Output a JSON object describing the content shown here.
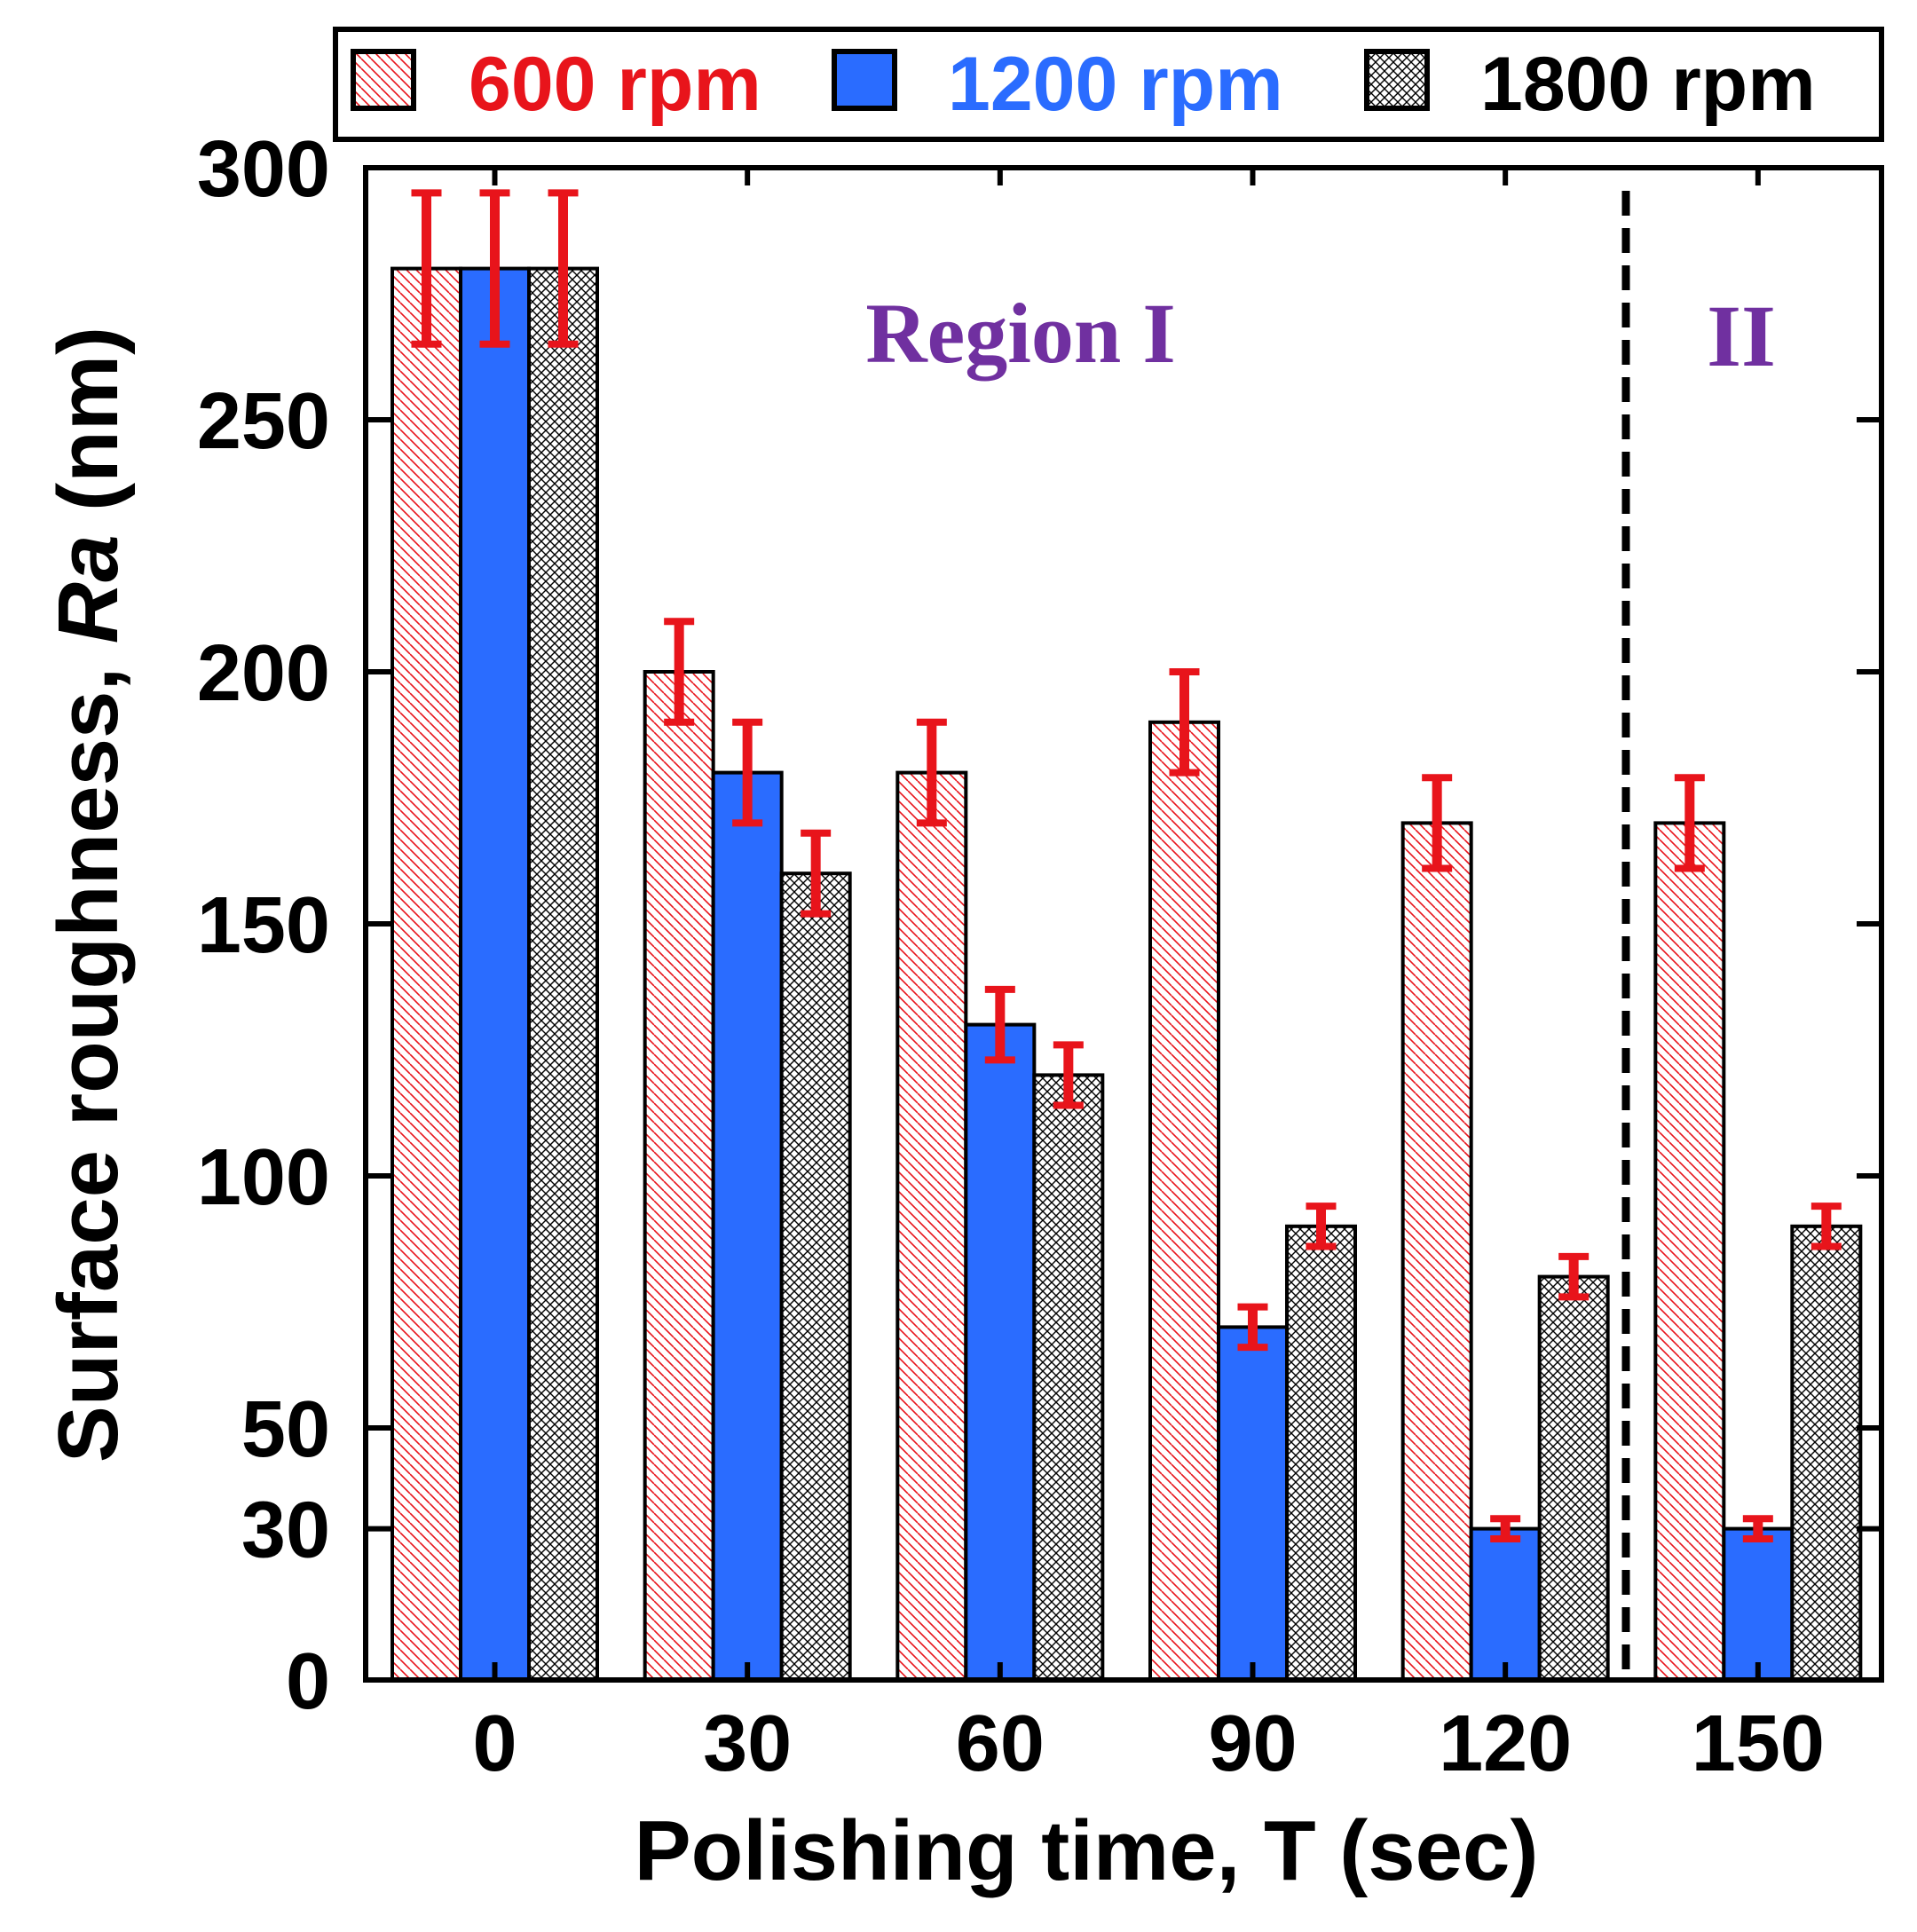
{
  "chart_data": {
    "type": "bar",
    "title": "",
    "xlabel": "Polishing time, T (sec)",
    "ylabel": {
      "prefix": "Surface roughness, ",
      "italic": "Ra",
      "suffix": " (nm)"
    },
    "categories": [
      "0",
      "30",
      "60",
      "90",
      "120",
      "150"
    ],
    "ylim": [
      0,
      300
    ],
    "y_ticks": [
      0,
      30,
      50,
      100,
      150,
      200,
      250,
      300
    ],
    "grid": false,
    "legend_position": "top",
    "series": [
      {
        "name": "600 rpm",
        "pattern": "diagonal-hatch",
        "color": "#e8141b",
        "values": [
          280,
          200,
          180,
          190,
          170,
          170
        ],
        "errors": [
          15,
          10,
          10,
          10,
          9,
          9
        ]
      },
      {
        "name": "1200 rpm",
        "pattern": "solid",
        "color": "#2a6cff",
        "values": [
          280,
          180,
          130,
          70,
          30,
          30
        ],
        "errors": [
          15,
          10,
          7,
          4,
          2,
          2
        ]
      },
      {
        "name": "1800 rpm",
        "pattern": "crosshatch",
        "color": "#000000",
        "values": [
          280,
          160,
          120,
          90,
          80,
          90
        ],
        "errors": [
          15,
          8,
          6,
          4,
          4,
          4
        ]
      }
    ],
    "error_bar_color": "#e8141b",
    "divider_between": [
      "120",
      "150"
    ],
    "annotations": [
      {
        "text": "Region I",
        "color": "#7030a0"
      },
      {
        "text": "II",
        "color": "#7030a0"
      }
    ]
  }
}
